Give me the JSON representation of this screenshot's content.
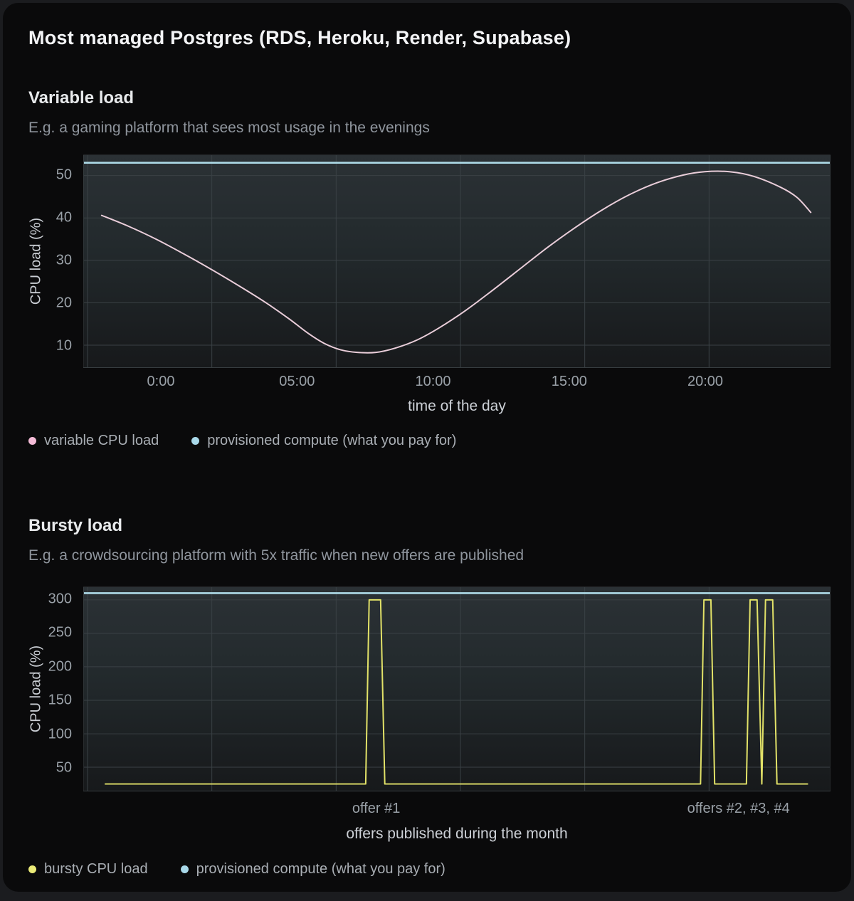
{
  "page": {
    "title": "Most managed Postgres (RDS, Heroku, Render, Supabase)"
  },
  "colors": {
    "card_background": "#0a0a0b",
    "outer_background": "#1b1c1f",
    "plot_gradient_top": "#2b3135",
    "plot_gradient_bottom": "#17191b",
    "grid": "#3a4145",
    "tick_text": "#9aa1a8",
    "axis_label_text": "#ccd0d6",
    "legend_text": "#a9aeb4",
    "heading_text": "#e8eaec",
    "subtitle_text": "#8f959d",
    "pink_line": "#eaceda",
    "pink_dot": "#f4bbd7",
    "cyan_line": "#aedbe8",
    "cyan_dot": "#a9d9ea",
    "yellow_line": "#e2e268",
    "yellow_dot": "#ebeb78"
  },
  "chart_data": [
    {
      "type": "line",
      "title": "Variable load",
      "subtitle": "E.g. a gaming platform that sees most usage in the evenings",
      "xlabel": "time of the day",
      "ylabel": "CPU load (%)",
      "xlim": [
        -2.85,
        24.6
      ],
      "ylim": [
        4.8,
        54.8
      ],
      "grid": true,
      "legend_position": "bottom-left",
      "xticks": [
        {
          "v": 0,
          "label": "0:00"
        },
        {
          "v": 5,
          "label": "05:00"
        },
        {
          "v": 10,
          "label": "10:00"
        },
        {
          "v": 15,
          "label": "15:00"
        },
        {
          "v": 20,
          "label": "20:00"
        }
      ],
      "yticks": [
        10,
        20,
        30,
        40,
        50
      ],
      "series": [
        {
          "name": "variable CPU load",
          "color": "pink",
          "smooth": true,
          "points": [
            [
              -2.2,
              40.6
            ],
            [
              -1.2,
              38.0
            ],
            [
              -0.2,
              35.0
            ],
            [
              0.8,
              31.6
            ],
            [
              1.8,
              28.0
            ],
            [
              2.8,
              24.2
            ],
            [
              3.8,
              20.2
            ],
            [
              4.7,
              16.2
            ],
            [
              5.4,
              12.8
            ],
            [
              6.0,
              10.4
            ],
            [
              6.6,
              8.9
            ],
            [
              7.2,
              8.3
            ],
            [
              7.9,
              8.3
            ],
            [
              8.6,
              9.3
            ],
            [
              9.4,
              11.2
            ],
            [
              10.2,
              14.0
            ],
            [
              11.2,
              18.2
            ],
            [
              12.2,
              23.0
            ],
            [
              13.2,
              28.0
            ],
            [
              14.2,
              33.0
            ],
            [
              15.2,
              37.6
            ],
            [
              16.2,
              41.8
            ],
            [
              17.2,
              45.4
            ],
            [
              18.2,
              48.2
            ],
            [
              19.2,
              50.1
            ],
            [
              20.0,
              50.9
            ],
            [
              20.9,
              50.9
            ],
            [
              21.8,
              49.8
            ],
            [
              22.8,
              47.2
            ],
            [
              23.4,
              44.8
            ],
            [
              23.9,
              41.3
            ]
          ]
        },
        {
          "name": "provisioned compute (what you pay for)",
          "color": "cyan",
          "constant": 53
        }
      ]
    },
    {
      "type": "line",
      "title": "Bursty load",
      "subtitle": "E.g. a crowdsourcing platform with 5x traffic when new offers are published",
      "xlabel": "offers published during the month",
      "ylabel": "CPU load (%)",
      "xlim": [
        -0.15,
        29.9
      ],
      "ylim": [
        15,
        319
      ],
      "grid": true,
      "legend_position": "bottom-left",
      "xticks": [
        {
          "v": 11.63,
          "label": "offer #1"
        },
        {
          "v": 26.2,
          "label": "offers #2, #3, #4"
        }
      ],
      "yticks": [
        50,
        100,
        150,
        200,
        250,
        300
      ],
      "series": [
        {
          "name": "bursty CPU load",
          "color": "yellow",
          "smooth": false,
          "points": [
            [
              0.71,
              25
            ],
            [
              11.2,
              25
            ],
            [
              11.34,
              300
            ],
            [
              11.8,
              300
            ],
            [
              11.97,
              25
            ],
            [
              24.69,
              25
            ],
            [
              24.83,
              300
            ],
            [
              25.11,
              300
            ],
            [
              25.26,
              25
            ],
            [
              26.54,
              25
            ],
            [
              26.69,
              300
            ],
            [
              26.97,
              300
            ],
            [
              27.16,
              25
            ],
            [
              27.31,
              300
            ],
            [
              27.6,
              300
            ],
            [
              27.77,
              25
            ],
            [
              29.0,
              25
            ]
          ]
        },
        {
          "name": "provisioned compute (what you pay for)",
          "color": "cyan",
          "constant": 310
        }
      ]
    }
  ]
}
